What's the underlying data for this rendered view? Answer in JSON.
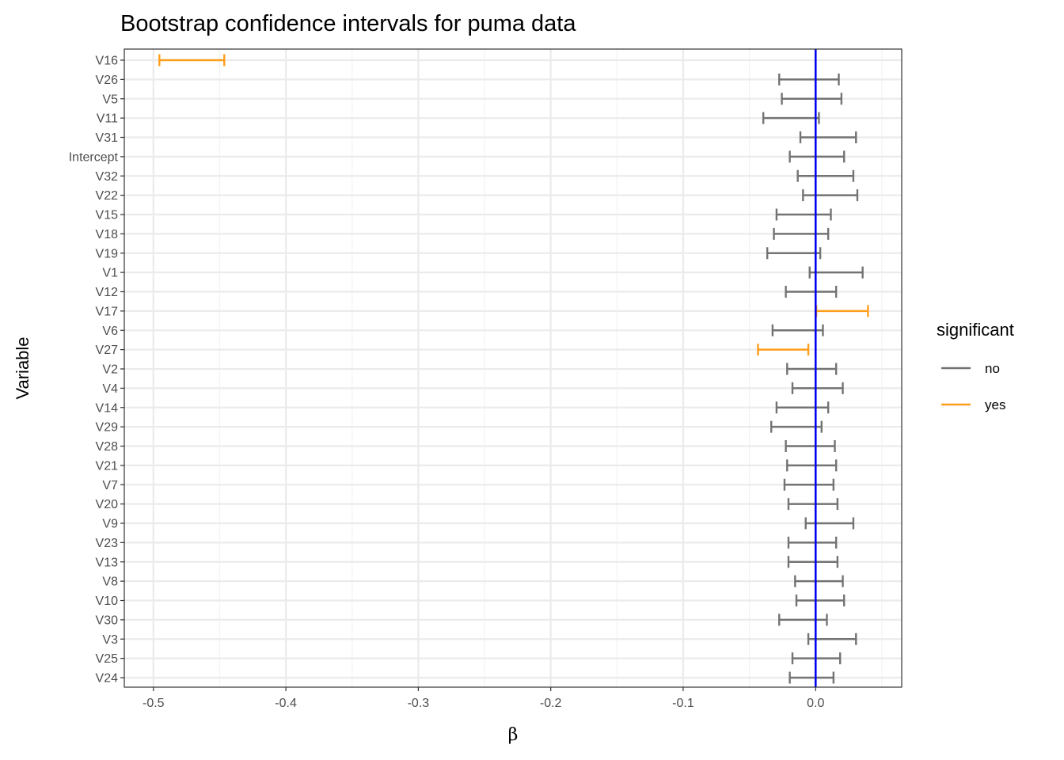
{
  "chart_data": {
    "type": "errorbar",
    "title": "Bootstrap confidence intervals for puma data",
    "xlabel": "β",
    "ylabel": "Variable",
    "xlim": [
      -0.522,
      0.065
    ],
    "x_ticks": [
      -0.5,
      -0.4,
      -0.3,
      -0.2,
      -0.1,
      0.0
    ],
    "x_tick_labels": [
      "-0.5",
      "-0.4",
      "-0.3",
      "-0.2",
      "-0.1",
      "0.0"
    ],
    "reference_line": {
      "x": 0.0,
      "color": "#0000ee"
    },
    "legend": {
      "title": "significant",
      "position": "right",
      "entries": [
        {
          "key": "no",
          "label": "no",
          "color": "#737373"
        },
        {
          "key": "yes",
          "label": "yes",
          "color": "#ff9e1a"
        }
      ]
    },
    "intervals": [
      {
        "variable": "V16",
        "lower": -0.4955,
        "upper": -0.4465,
        "significant": "yes"
      },
      {
        "variable": "V26",
        "lower": -0.0275,
        "upper": 0.0175,
        "significant": "no"
      },
      {
        "variable": "V5",
        "lower": -0.0255,
        "upper": 0.0195,
        "significant": "no"
      },
      {
        "variable": "V11",
        "lower": -0.0395,
        "upper": 0.0025,
        "significant": "no"
      },
      {
        "variable": "V31",
        "lower": -0.0115,
        "upper": 0.0305,
        "significant": "no"
      },
      {
        "variable": "Intercept",
        "lower": -0.0195,
        "upper": 0.0215,
        "significant": "no"
      },
      {
        "variable": "V32",
        "lower": -0.0135,
        "upper": 0.0285,
        "significant": "no"
      },
      {
        "variable": "V22",
        "lower": -0.0095,
        "upper": 0.0315,
        "significant": "no"
      },
      {
        "variable": "V15",
        "lower": -0.0295,
        "upper": 0.0115,
        "significant": "no"
      },
      {
        "variable": "V18",
        "lower": -0.0315,
        "upper": 0.0095,
        "significant": "no"
      },
      {
        "variable": "V19",
        "lower": -0.0365,
        "upper": 0.0035,
        "significant": "no"
      },
      {
        "variable": "V1",
        "lower": -0.0045,
        "upper": 0.0355,
        "significant": "no"
      },
      {
        "variable": "V12",
        "lower": -0.0225,
        "upper": 0.0155,
        "significant": "no"
      },
      {
        "variable": "V17",
        "lower": 0.0005,
        "upper": 0.0395,
        "significant": "yes"
      },
      {
        "variable": "V6",
        "lower": -0.0325,
        "upper": 0.0055,
        "significant": "no"
      },
      {
        "variable": "V27",
        "lower": -0.0435,
        "upper": -0.0055,
        "significant": "yes"
      },
      {
        "variable": "V2",
        "lower": -0.0215,
        "upper": 0.0155,
        "significant": "no"
      },
      {
        "variable": "V4",
        "lower": -0.0175,
        "upper": 0.0205,
        "significant": "no"
      },
      {
        "variable": "V14",
        "lower": -0.0295,
        "upper": 0.0095,
        "significant": "no"
      },
      {
        "variable": "V29",
        "lower": -0.0335,
        "upper": 0.0045,
        "significant": "no"
      },
      {
        "variable": "V28",
        "lower": -0.0225,
        "upper": 0.0145,
        "significant": "no"
      },
      {
        "variable": "V21",
        "lower": -0.0215,
        "upper": 0.0155,
        "significant": "no"
      },
      {
        "variable": "V7",
        "lower": -0.0235,
        "upper": 0.0135,
        "significant": "no"
      },
      {
        "variable": "V20",
        "lower": -0.0205,
        "upper": 0.0165,
        "significant": "no"
      },
      {
        "variable": "V9",
        "lower": -0.0075,
        "upper": 0.0285,
        "significant": "no"
      },
      {
        "variable": "V23",
        "lower": -0.0205,
        "upper": 0.0155,
        "significant": "no"
      },
      {
        "variable": "V13",
        "lower": -0.0205,
        "upper": 0.0165,
        "significant": "no"
      },
      {
        "variable": "V8",
        "lower": -0.0155,
        "upper": 0.0205,
        "significant": "no"
      },
      {
        "variable": "V10",
        "lower": -0.0145,
        "upper": 0.0215,
        "significant": "no"
      },
      {
        "variable": "V30",
        "lower": -0.0275,
        "upper": 0.0085,
        "significant": "no"
      },
      {
        "variable": "V3",
        "lower": -0.0055,
        "upper": 0.0305,
        "significant": "no"
      },
      {
        "variable": "V25",
        "lower": -0.0175,
        "upper": 0.0185,
        "significant": "no"
      },
      {
        "variable": "V24",
        "lower": -0.0195,
        "upper": 0.0135,
        "significant": "no"
      }
    ]
  }
}
